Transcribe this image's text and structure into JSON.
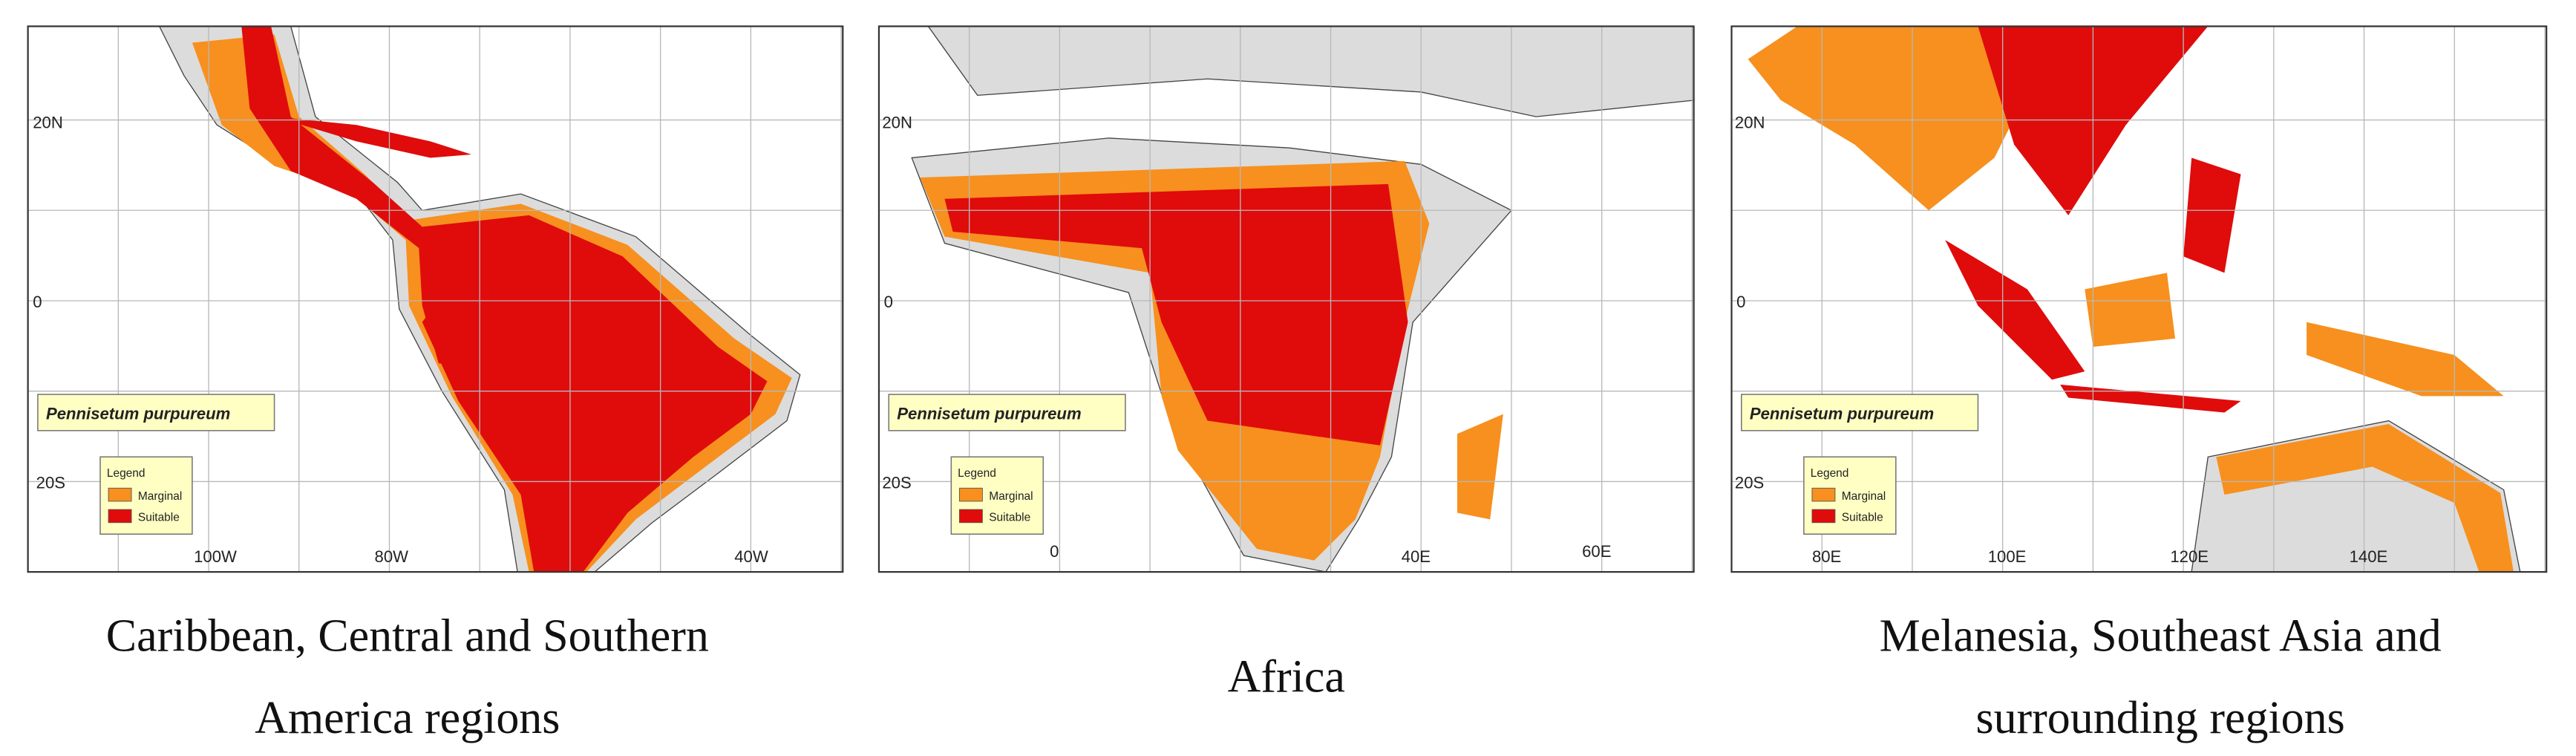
{
  "panels": [
    {
      "grid_labels": [
        "20N",
        "0",
        "20S",
        "100W",
        "80W",
        "40W"
      ],
      "species": "Pennisetum purpureum",
      "legend": {
        "title": "Legend",
        "items": [
          "Marginal",
          "Suitable"
        ]
      },
      "caption": [
        "Caribbean, Central and Southern",
        "America regions"
      ]
    },
    {
      "grid_labels": [
        "20N",
        "0",
        "20S",
        "0",
        "40E",
        "60E"
      ],
      "species": "Pennisetum purpureum",
      "legend": {
        "title": "Legend",
        "items": [
          "Marginal",
          "Suitable"
        ]
      },
      "caption": [
        "Africa"
      ]
    },
    {
      "grid_labels": [
        "20N",
        "0",
        "20S",
        "80E",
        "100E",
        "120E",
        "140E"
      ],
      "species": "Pennisetum purpureum",
      "legend": {
        "title": "Legend",
        "items": [
          "Marginal",
          "Suitable"
        ]
      },
      "caption": [
        "Melanesia, Southeast Asia and",
        "surrounding regions"
      ]
    }
  ]
}
